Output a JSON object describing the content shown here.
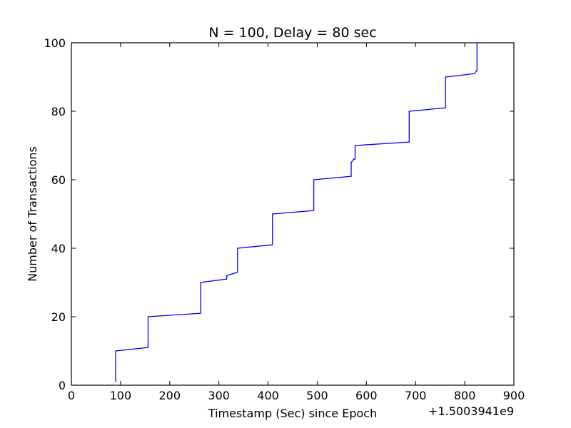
{
  "chart_data": {
    "type": "line",
    "title": "N = 100, Delay = 80 sec",
    "xlabel": "Timestamp (Sec) since Epoch",
    "ylabel": "Number of Transactions",
    "x_offset_label": "+1.5003941e9",
    "xlim": [
      0,
      900
    ],
    "ylim": [
      0,
      100
    ],
    "xticks": [
      0,
      100,
      200,
      300,
      400,
      500,
      600,
      700,
      800,
      900
    ],
    "yticks": [
      0,
      20,
      40,
      60,
      80,
      100
    ],
    "grid": false,
    "line_color": "#0000ff",
    "series": [
      {
        "x": [
          90,
          90,
          156,
          156,
          263,
          263,
          316,
          316,
          338,
          338,
          409,
          409,
          493,
          493,
          569,
          569,
          574,
          574,
          577,
          577,
          687,
          687,
          761,
          761,
          820,
          825,
          825
        ],
        "y": [
          1,
          10,
          11,
          20,
          21,
          30,
          31,
          32,
          33,
          40,
          41,
          50,
          51,
          60,
          61,
          65,
          66,
          66,
          66,
          70,
          71,
          80,
          81,
          90,
          91,
          92,
          100
        ]
      }
    ]
  }
}
